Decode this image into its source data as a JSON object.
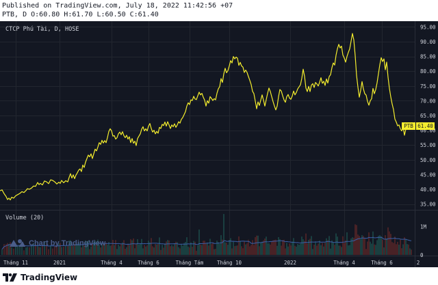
{
  "header": {
    "published": "Published on TradingView.com, July 18, 2022 11:42:56 +07",
    "ohlc": "PTB, D O:60.80 H:61.70 L:60.50 C:61.40"
  },
  "chart": {
    "symbol_title": "CTCP Phú Tài, D, HOSE",
    "volume_label": "Volume (20)",
    "watermark": "Chart by TradingView",
    "last_price_label": "61.40",
    "ticker_badge": "PTB"
  },
  "footer": {
    "brand": "TradingView"
  },
  "colors": {
    "background": "#131722",
    "price_line": "#f5ee2e",
    "grid": "#22262f",
    "axis_text": "#d1d4dc",
    "volume_up": "#1f5a55",
    "volume_down": "#6b2a2a",
    "volume_ma": "#3b5fa8",
    "watermark": "#4a5d8a"
  },
  "chart_data": {
    "type": "line",
    "title": "CTCP Phú Tài, D, HOSE",
    "series": [
      {
        "name": "PTB close",
        "points": [
          [
            0,
            39.5
          ],
          [
            3,
            39.8
          ],
          [
            6,
            38.5
          ],
          [
            9,
            37.5
          ],
          [
            11,
            36.5
          ],
          [
            13,
            37.0
          ],
          [
            15,
            36.4
          ],
          [
            17,
            37.3
          ],
          [
            20,
            37.0
          ],
          [
            23,
            37.8
          ],
          [
            26,
            38.2
          ],
          [
            29,
            38.6
          ],
          [
            32,
            39.2
          ],
          [
            35,
            38.9
          ],
          [
            38,
            39.6
          ],
          [
            40,
            40.2
          ],
          [
            43,
            40.0
          ],
          [
            46,
            40.4
          ],
          [
            49,
            41.1
          ],
          [
            52,
            41.0
          ],
          [
            55,
            42.3
          ],
          [
            57,
            41.6
          ],
          [
            59,
            42.0
          ],
          [
            62,
            41.5
          ],
          [
            65,
            42.8
          ],
          [
            68,
            42.5
          ],
          [
            71,
            41.9
          ],
          [
            74,
            43.2
          ],
          [
            77,
            43.0
          ],
          [
            80,
            42.5
          ],
          [
            83,
            41.8
          ],
          [
            86,
            42.4
          ],
          [
            88,
            42.0
          ],
          [
            90,
            43.0
          ],
          [
            93,
            42.2
          ],
          [
            96,
            42.9
          ],
          [
            99,
            42.5
          ],
          [
            101,
            44.0
          ],
          [
            103,
            45.3
          ],
          [
            105,
            43.8
          ],
          [
            107,
            44.9
          ],
          [
            109,
            43.6
          ],
          [
            111,
            44.8
          ],
          [
            113,
            45.6
          ],
          [
            115,
            46.5
          ],
          [
            117,
            46.9
          ],
          [
            119,
            46.0
          ],
          [
            121,
            48.2
          ],
          [
            123,
            47.4
          ],
          [
            125,
            49.2
          ],
          [
            127,
            50.4
          ],
          [
            129,
            51.6
          ],
          [
            131,
            51.0
          ],
          [
            133,
            52.0
          ],
          [
            135,
            50.4
          ],
          [
            137,
            52.0
          ],
          [
            139,
            53.6
          ],
          [
            141,
            53.0
          ],
          [
            143,
            54.3
          ],
          [
            145,
            55.8
          ],
          [
            147,
            55.2
          ],
          [
            149,
            56.6
          ],
          [
            151,
            55.7
          ],
          [
            153,
            56.5
          ],
          [
            155,
            55.8
          ],
          [
            157,
            57.5
          ],
          [
            159,
            59.6
          ],
          [
            161,
            60.5
          ],
          [
            163,
            59.8
          ],
          [
            165,
            58.0
          ],
          [
            167,
            58.2
          ],
          [
            169,
            57.0
          ],
          [
            171,
            57.5
          ],
          [
            173,
            58.8
          ],
          [
            175,
            59.4
          ],
          [
            177,
            58.5
          ],
          [
            179,
            59.5
          ],
          [
            181,
            58.2
          ],
          [
            183,
            57.5
          ],
          [
            185,
            58.3
          ],
          [
            187,
            57.0
          ],
          [
            189,
            57.8
          ],
          [
            191,
            55.8
          ],
          [
            193,
            57.2
          ],
          [
            195,
            55.6
          ],
          [
            197,
            56.3
          ],
          [
            199,
            54.8
          ],
          [
            201,
            57.2
          ],
          [
            203,
            58.0
          ],
          [
            205,
            58.8
          ],
          [
            207,
            60.4
          ],
          [
            209,
            61.2
          ],
          [
            211,
            59.8
          ],
          [
            213,
            60.5
          ],
          [
            215,
            59.8
          ],
          [
            217,
            61.4
          ],
          [
            219,
            62.3
          ],
          [
            221,
            60.6
          ],
          [
            223,
            59.4
          ],
          [
            225,
            60.0
          ],
          [
            227,
            58.8
          ],
          [
            229,
            59.6
          ],
          [
            231,
            59.0
          ],
          [
            233,
            61.0
          ],
          [
            235,
            60.6
          ],
          [
            237,
            62.0
          ],
          [
            239,
            61.6
          ],
          [
            241,
            62.8
          ],
          [
            243,
            61.4
          ],
          [
            245,
            62.9
          ],
          [
            247,
            61.8
          ],
          [
            249,
            60.6
          ],
          [
            251,
            61.8
          ],
          [
            253,
            61.2
          ],
          [
            255,
            62.2
          ],
          [
            257,
            61.0
          ],
          [
            259,
            61.8
          ],
          [
            261,
            62.9
          ],
          [
            263,
            62.4
          ],
          [
            265,
            63.7
          ],
          [
            267,
            64.3
          ],
          [
            269,
            65.3
          ],
          [
            271,
            66.3
          ],
          [
            273,
            68.2
          ],
          [
            275,
            69.3
          ],
          [
            277,
            68.7
          ],
          [
            279,
            70.3
          ],
          [
            281,
            70.1
          ],
          [
            283,
            71.5
          ],
          [
            285,
            70.6
          ],
          [
            287,
            70.4
          ],
          [
            289,
            71.7
          ],
          [
            291,
            72.9
          ],
          [
            293,
            72.0
          ],
          [
            295,
            72.5
          ],
          [
            297,
            71.2
          ],
          [
            299,
            70.2
          ],
          [
            301,
            68.2
          ],
          [
            303,
            70.0
          ],
          [
            305,
            69.2
          ],
          [
            307,
            71.4
          ],
          [
            309,
            70.8
          ],
          [
            311,
            70.1
          ],
          [
            313,
            70.7
          ],
          [
            315,
            70.3
          ],
          [
            317,
            72.5
          ],
          [
            319,
            74.0
          ],
          [
            321,
            74.8
          ],
          [
            323,
            77.5
          ],
          [
            325,
            76.2
          ],
          [
            327,
            79.1
          ],
          [
            329,
            81.0
          ],
          [
            331,
            79.5
          ],
          [
            333,
            80.2
          ],
          [
            335,
            81.8
          ],
          [
            337,
            83.6
          ],
          [
            339,
            82.8
          ],
          [
            341,
            85.0
          ],
          [
            343,
            84.2
          ],
          [
            345,
            84.8
          ],
          [
            347,
            84.4
          ],
          [
            349,
            82.0
          ],
          [
            351,
            83.0
          ],
          [
            353,
            81.8
          ],
          [
            355,
            81.4
          ],
          [
            357,
            79.6
          ],
          [
            359,
            80.4
          ],
          [
            361,
            79.6
          ],
          [
            363,
            78.2
          ],
          [
            365,
            76.9
          ],
          [
            367,
            75.5
          ],
          [
            369,
            73.2
          ],
          [
            371,
            72.4
          ],
          [
            373,
            69.9
          ],
          [
            375,
            67.3
          ],
          [
            377,
            69.6
          ],
          [
            379,
            68.4
          ],
          [
            381,
            70.2
          ],
          [
            383,
            72.0
          ],
          [
            385,
            70.2
          ],
          [
            387,
            68.2
          ],
          [
            389,
            70.4
          ],
          [
            391,
            72.5
          ],
          [
            393,
            74.3
          ],
          [
            395,
            73.1
          ],
          [
            397,
            71.4
          ],
          [
            399,
            69.7
          ],
          [
            401,
            68.2
          ],
          [
            403,
            66.9
          ],
          [
            405,
            68.2
          ],
          [
            407,
            71.4
          ],
          [
            409,
            73.8
          ],
          [
            411,
            73.3
          ],
          [
            413,
            71.7
          ],
          [
            415,
            70.3
          ],
          [
            417,
            69.5
          ],
          [
            419,
            71.4
          ],
          [
            421,
            72.1
          ],
          [
            423,
            70.9
          ],
          [
            425,
            70.5
          ],
          [
            427,
            71.6
          ],
          [
            429,
            73.3
          ],
          [
            431,
            72.0
          ],
          [
            433,
            72.8
          ],
          [
            435,
            74.0
          ],
          [
            437,
            74.7
          ],
          [
            439,
            75.4
          ],
          [
            441,
            77.6
          ],
          [
            443,
            80.7
          ],
          [
            445,
            78.3
          ],
          [
            447,
            74.3
          ],
          [
            449,
            73.1
          ],
          [
            451,
            74.9
          ],
          [
            453,
            73.1
          ],
          [
            455,
            75.3
          ],
          [
            457,
            75.8
          ],
          [
            459,
            74.5
          ],
          [
            461,
            76.2
          ],
          [
            463,
            75.7
          ],
          [
            465,
            75.0
          ],
          [
            467,
            76.2
          ],
          [
            469,
            77.8
          ],
          [
            471,
            75.9
          ],
          [
            473,
            76.6
          ],
          [
            475,
            75.2
          ],
          [
            477,
            77.4
          ],
          [
            479,
            76.0
          ],
          [
            481,
            78.2
          ],
          [
            483,
            78.8
          ],
          [
            485,
            81.2
          ],
          [
            487,
            82.8
          ],
          [
            489,
            82.1
          ],
          [
            491,
            85.4
          ],
          [
            493,
            87.6
          ],
          [
            495,
            89.1
          ],
          [
            497,
            87.9
          ],
          [
            499,
            88.5
          ],
          [
            501,
            85.5
          ],
          [
            503,
            84.5
          ],
          [
            505,
            83.1
          ],
          [
            507,
            85.0
          ],
          [
            509,
            86.4
          ],
          [
            511,
            87.6
          ],
          [
            513,
            90.2
          ],
          [
            515,
            92.8
          ],
          [
            517,
            90.6
          ],
          [
            519,
            85.3
          ],
          [
            521,
            78.6
          ],
          [
            523,
            74.6
          ],
          [
            525,
            71.2
          ],
          [
            527,
            73.5
          ],
          [
            529,
            76.5
          ],
          [
            531,
            74.0
          ],
          [
            533,
            72.4
          ],
          [
            535,
            71.9
          ],
          [
            537,
            69.8
          ],
          [
            539,
            68.5
          ],
          [
            541,
            70.0
          ],
          [
            543,
            70.7
          ],
          [
            545,
            74.2
          ],
          [
            547,
            72.4
          ],
          [
            549,
            73.8
          ],
          [
            551,
            76.1
          ],
          [
            553,
            79.2
          ],
          [
            555,
            82.2
          ],
          [
            557,
            84.6
          ],
          [
            559,
            83.3
          ],
          [
            561,
            84.2
          ],
          [
            563,
            80.5
          ],
          [
            565,
            83.1
          ],
          [
            567,
            78.0
          ],
          [
            569,
            74.2
          ],
          [
            571,
            71.3
          ],
          [
            573,
            68.9
          ],
          [
            575,
            67.0
          ],
          [
            577,
            63.8
          ],
          [
            579,
            62.8
          ],
          [
            581,
            61.5
          ],
          [
            583,
            61.8
          ],
          [
            585,
            60.5
          ],
          [
            587,
            59.8
          ],
          [
            589,
            61.2
          ],
          [
            591,
            58.3
          ],
          [
            593,
            60.4
          ],
          [
            595,
            61.0
          ],
          [
            597,
            60.8
          ],
          [
            599,
            61.6
          ],
          [
            601,
            61.4
          ]
        ]
      }
    ],
    "y_ticks": [
      "95.00",
      "90.00",
      "85.00",
      "80.00",
      "75.00",
      "70.00",
      "65.00",
      "60.00",
      "55.00",
      "50.00",
      "45.00",
      "40.00",
      "35.00"
    ],
    "y_min": 33.5,
    "y_max": 96.5,
    "last_close": 61.4,
    "x_ticks": [
      {
        "label": "Tháng 11",
        "pos": 23
      },
      {
        "label": "2021",
        "pos": 87
      },
      {
        "label": "Tháng 4",
        "pos": 163
      },
      {
        "label": "Tháng 6",
        "pos": 217
      },
      {
        "label": "Tháng Tám",
        "pos": 277
      },
      {
        "label": "Tháng 10",
        "pos": 335
      },
      {
        "label": "2022",
        "pos": 424
      },
      {
        "label": "Tháng 4",
        "pos": 503
      },
      {
        "label": "Tháng 6",
        "pos": 558
      },
      {
        "label": "2",
        "pos": 611
      }
    ],
    "x_domain": [
      0,
      640
    ],
    "volume": {
      "y_ticks": [
        "1M",
        "0"
      ],
      "max": 1500000,
      "ma_period": 20
    }
  }
}
